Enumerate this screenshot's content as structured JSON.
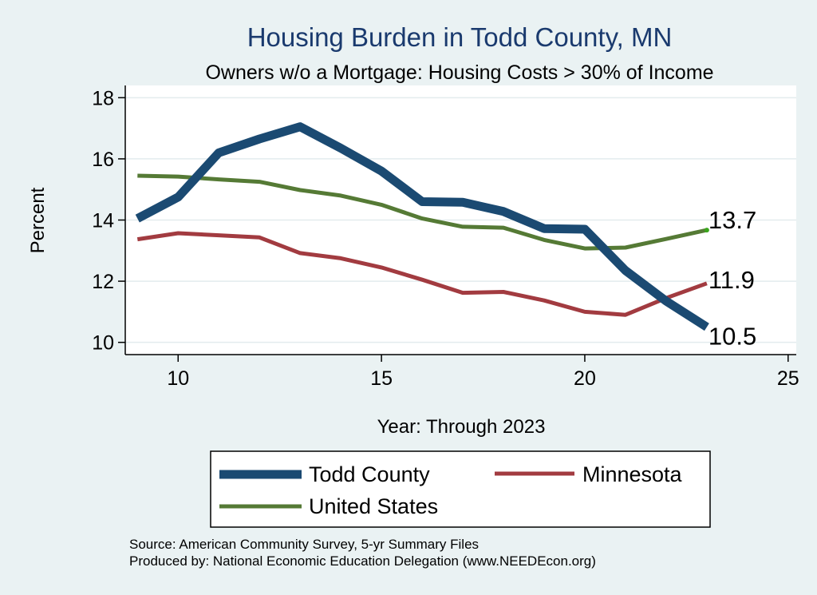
{
  "chart_data": {
    "type": "line",
    "title": "Housing Burden in Todd County, MN",
    "subtitle": "Owners w/o a Mortgage: Housing Costs > 30% of Income",
    "xlabel": "Year: Through 2023",
    "ylabel": "Percent",
    "xlim": [
      8.7,
      25.2
    ],
    "ylim": [
      9.6,
      18.4
    ],
    "xticks": [
      10,
      15,
      20,
      25
    ],
    "yticks": [
      10,
      12,
      14,
      16,
      18
    ],
    "grid": true,
    "legend_position": "bottom",
    "series": [
      {
        "name": "Todd County",
        "color": "#1b4a72",
        "width": "thick",
        "x": [
          9,
          10,
          11,
          12,
          13,
          14,
          15,
          16,
          17,
          18,
          19,
          20,
          21,
          22,
          23
        ],
        "y": [
          14.05,
          14.75,
          16.2,
          16.65,
          17.05,
          16.35,
          15.6,
          14.6,
          14.58,
          14.28,
          13.72,
          13.7,
          12.35,
          11.35,
          10.5
        ],
        "end_label": "10.5"
      },
      {
        "name": "Minnesota",
        "color": "#a23b40",
        "width": "medium",
        "x": [
          9,
          10,
          11,
          12,
          13,
          14,
          15,
          16,
          17,
          18,
          19,
          20,
          21,
          22,
          23
        ],
        "y": [
          13.37,
          13.57,
          13.5,
          13.43,
          12.92,
          12.75,
          12.45,
          12.05,
          11.62,
          11.65,
          11.37,
          11.0,
          10.9,
          11.45,
          11.93
        ],
        "end_label": "11.9"
      },
      {
        "name": "United States",
        "color": "#557a35",
        "width": "medium",
        "x": [
          9,
          10,
          11,
          12,
          13,
          14,
          15,
          16,
          17,
          18,
          19,
          20,
          21,
          22,
          23
        ],
        "y": [
          15.45,
          15.42,
          15.33,
          15.25,
          14.98,
          14.8,
          14.5,
          14.05,
          13.78,
          13.75,
          13.35,
          13.07,
          13.1,
          13.38,
          13.67
        ],
        "end_label": "13.7"
      }
    ],
    "source_lines": [
      "Source: American Community Survey, 5-yr Summary Files",
      "Produced by: National Economic Education Delegation (www.NEEDEcon.org)"
    ]
  }
}
